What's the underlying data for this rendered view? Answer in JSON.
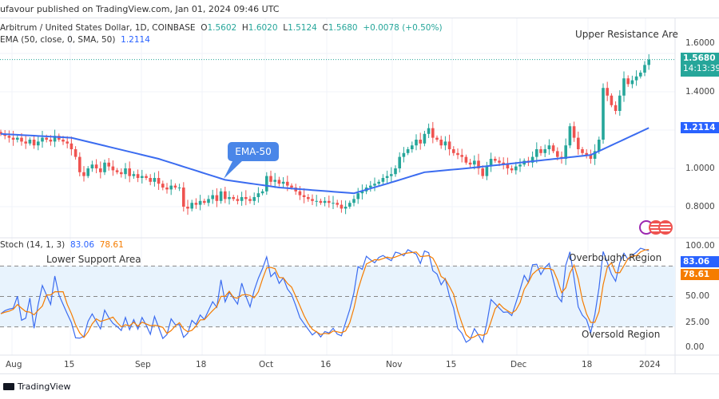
{
  "header": {
    "published": "ufavour published on TradingView.com, Jan 01, 2024 09:46 UTC"
  },
  "legend": {
    "symbol": "Arbitrum / United States Dollar, 1D, COINBASE",
    "o_label": "O",
    "o": "1.5602",
    "h_label": "H",
    "h": "1.6020",
    "l_label": "L",
    "l": "1.5124",
    "c_label": "C",
    "c": "1.5680",
    "change": "+0.0078 (+0.50%)",
    "ema_label": "EMA (50, close, 0, SMA, 50)",
    "ema_value": "1.2114"
  },
  "stoch_legend": {
    "label": "Stoch (14, 1, 3)",
    "k": "83.06",
    "d": "78.61"
  },
  "annotations": {
    "upper": "Upper Resistance Are",
    "ema": "EMA-50",
    "lower": "Lower Support Area",
    "overbought": "Overbought Region",
    "oversold": "Oversold Region"
  },
  "price_axis": {
    "ticks": [
      "1.6000",
      "1.4000",
      "1.0000",
      "0.8000"
    ],
    "last_price": "1.5680",
    "countdown": "14:13:39",
    "ema_tag": "1.2114"
  },
  "stoch_axis": {
    "ticks": [
      "100.00",
      "50.00",
      "25.00",
      "0.00"
    ],
    "k_tag": "83.06",
    "d_tag": "78.61"
  },
  "time_axis": [
    "Aug",
    "15",
    "Sep",
    "18",
    "Oct",
    "16",
    "Nov",
    "15",
    "Dec",
    "18",
    "2024"
  ],
  "footer": {
    "brand": "TradingView"
  },
  "colors": {
    "up": "#26a69a",
    "down": "#ef5350",
    "ema": "#3b6cf0",
    "k": "#3b6cf0",
    "d": "#f57c00",
    "band": "#e8f3fd"
  },
  "chart_data": {
    "type": "candlestick",
    "start_date": "2023-07-29",
    "end_date": "2024-01-01",
    "interval": "1D",
    "closes": [
      1.18,
      1.17,
      1.16,
      1.15,
      1.16,
      1.14,
      1.13,
      1.15,
      1.12,
      1.14,
      1.16,
      1.15,
      1.14,
      1.17,
      1.15,
      1.14,
      1.13,
      1.1,
      1.06,
      0.98,
      0.96,
      1.0,
      1.02,
      1.0,
      0.98,
      1.03,
      1.01,
      0.99,
      0.98,
      0.97,
      1.0,
      0.96,
      0.97,
      0.95,
      0.96,
      0.95,
      0.93,
      0.95,
      0.92,
      0.9,
      0.89,
      0.91,
      0.9,
      0.9,
      0.8,
      0.79,
      0.82,
      0.81,
      0.83,
      0.82,
      0.84,
      0.86,
      0.83,
      0.88,
      0.84,
      0.85,
      0.84,
      0.83,
      0.85,
      0.84,
      0.83,
      0.85,
      0.87,
      0.88,
      0.96,
      0.93,
      0.94,
      0.92,
      0.93,
      0.91,
      0.9,
      0.88,
      0.86,
      0.85,
      0.84,
      0.83,
      0.83,
      0.82,
      0.83,
      0.82,
      0.82,
      0.81,
      0.79,
      0.8,
      0.82,
      0.84,
      0.87,
      0.88,
      0.9,
      0.91,
      0.92,
      0.93,
      0.95,
      0.96,
      0.97,
      1.0,
      1.06,
      1.08,
      1.1,
      1.12,
      1.15,
      1.13,
      1.18,
      1.21,
      1.16,
      1.15,
      1.12,
      1.14,
      1.1,
      1.08,
      1.07,
      1.06,
      1.03,
      1.02,
      1.04,
      1.0,
      0.96,
      1.01,
      1.05,
      1.04,
      1.03,
      1.02,
      1.0,
      0.99,
      1.01,
      1.02,
      1.04,
      1.03,
      1.06,
      1.1,
      1.08,
      1.1,
      1.12,
      1.09,
      1.06,
      1.05,
      1.12,
      1.22,
      1.16,
      1.1,
      1.08,
      1.07,
      1.05,
      1.09,
      1.15,
      1.42,
      1.38,
      1.33,
      1.3,
      1.38,
      1.47,
      1.44,
      1.46,
      1.48,
      1.5,
      1.54,
      1.568
    ],
    "ema_points": [
      [
        0,
        1.18
      ],
      [
        17,
        1.16
      ],
      [
        38,
        1.05
      ],
      [
        54,
        0.94
      ],
      [
        67,
        0.9
      ],
      [
        85,
        0.87
      ],
      [
        93,
        0.92
      ],
      [
        102,
        0.98
      ],
      [
        112,
        1.0
      ],
      [
        125,
        1.03
      ],
      [
        142,
        1.07
      ],
      [
        156,
        1.2114
      ]
    ],
    "price_range": [
      0.72,
      1.66
    ],
    "stoch_range": [
      0,
      100
    ],
    "stoch_levels": [
      80,
      50,
      20
    ]
  }
}
